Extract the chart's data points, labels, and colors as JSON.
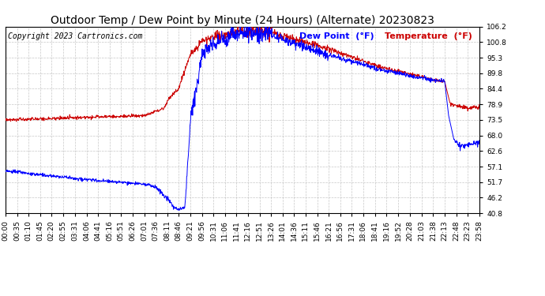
{
  "title": "Outdoor Temp / Dew Point by Minute (24 Hours) (Alternate) 20230823",
  "copyright": "Copyright 2023 Cartronics.com",
  "legend_dew": "Dew Point  (°F)",
  "legend_temp": "Temperature  (°F)",
  "dew_color": "#0000ff",
  "temp_color": "#cc0000",
  "background_color": "#ffffff",
  "grid_color": "#b0b0b0",
  "ylim_min": 40.8,
  "ylim_max": 106.2,
  "yticks": [
    40.8,
    46.2,
    51.7,
    57.1,
    62.6,
    68.0,
    73.5,
    78.9,
    84.4,
    89.8,
    95.3,
    100.8,
    106.2
  ],
  "title_fontsize": 10,
  "axis_fontsize": 6.5,
  "legend_fontsize": 8,
  "copyright_fontsize": 7,
  "xtick_labels": [
    "00:00",
    "00:35",
    "01:10",
    "01:45",
    "02:20",
    "02:55",
    "03:31",
    "04:06",
    "04:41",
    "05:16",
    "05:51",
    "06:26",
    "07:01",
    "07:36",
    "08:11",
    "08:46",
    "09:21",
    "09:56",
    "10:31",
    "11:06",
    "11:41",
    "12:16",
    "12:51",
    "13:26",
    "14:01",
    "14:36",
    "15:11",
    "15:46",
    "16:21",
    "16:56",
    "17:31",
    "18:06",
    "18:41",
    "19:16",
    "19:52",
    "20:28",
    "21:03",
    "21:38",
    "22:13",
    "22:48",
    "23:23",
    "23:58"
  ]
}
